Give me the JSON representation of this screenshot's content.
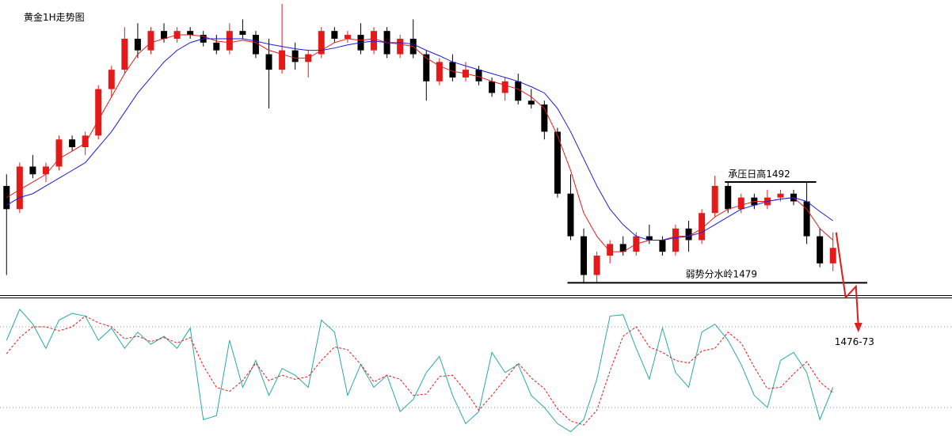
{
  "chart_data": [
    {
      "type": "candlestick",
      "title": "黄金1H走势图",
      "open": [
        1491.5,
        1488.5,
        1494,
        1493,
        1494,
        1497.5,
        1496.5,
        1498,
        1504,
        1506.5,
        1510.5,
        1509,
        1511.5,
        1510.5,
        1511.5,
        1511,
        1510,
        1509,
        1511.5,
        1511,
        1508.5,
        1506.5,
        1509,
        1507.5,
        1508.5,
        1511.5,
        1510.5,
        1511,
        1509,
        1511.5,
        1508.5,
        1510.5,
        1508.5,
        1505,
        1507.5,
        1505.5,
        1506.5,
        1505,
        1503.5,
        1505,
        1502.5,
        1502,
        1498.5,
        1490.5,
        1485,
        1480,
        1482.5,
        1484,
        1483,
        1485,
        1484.5,
        1483,
        1486,
        1484.5,
        1488,
        1491.5,
        1488.5,
        1490,
        1489,
        1490,
        1490.5,
        1489.5,
        1485,
        1481.5
      ],
      "high": [
        1493,
        1494.5,
        1495.5,
        1494.5,
        1498,
        1498,
        1498.5,
        1504.5,
        1507,
        1512,
        1512.5,
        1512,
        1512.5,
        1512,
        1512,
        1511.5,
        1511,
        1512.5,
        1513,
        1511.5,
        1510.5,
        1515,
        1510,
        1509,
        1512,
        1512,
        1511.5,
        1512.5,
        1512,
        1512,
        1511,
        1513,
        1509,
        1508,
        1508.5,
        1507.5,
        1507,
        1505.5,
        1505.5,
        1506,
        1504,
        1502.5,
        1499,
        1493,
        1486,
        1483,
        1484.5,
        1485,
        1485.5,
        1486.5,
        1485,
        1486.5,
        1487,
        1488.5,
        1492.8,
        1492,
        1490.5,
        1490.5,
        1491,
        1491,
        1491,
        1492,
        1486,
        1485.5
      ],
      "low": [
        1480,
        1488,
        1492.5,
        1492,
        1493.5,
        1496,
        1495.5,
        1497.5,
        1503,
        1506,
        1508,
        1508.5,
        1510,
        1510,
        1510.5,
        1509.5,
        1508.5,
        1508.5,
        1510.5,
        1508,
        1501.5,
        1506,
        1506.5,
        1505.5,
        1508,
        1510,
        1510,
        1508.5,
        1508.5,
        1508,
        1508,
        1508,
        1502.5,
        1504.5,
        1505,
        1505,
        1504.5,
        1503,
        1502.5,
        1502,
        1501.5,
        1497.5,
        1490,
        1484.5,
        1478.9,
        1479,
        1481.5,
        1482.5,
        1482.5,
        1484,
        1482.5,
        1482.5,
        1483,
        1484,
        1487.5,
        1488,
        1488,
        1488.5,
        1488.5,
        1489.5,
        1489,
        1484,
        1481,
        1480.5
      ],
      "close": [
        1488.5,
        1494,
        1493,
        1494,
        1497.5,
        1496.5,
        1498,
        1504,
        1506.5,
        1510.5,
        1509,
        1511.5,
        1510.5,
        1511.5,
        1511,
        1510,
        1509,
        1511.5,
        1511,
        1508.5,
        1506.5,
        1509,
        1507.5,
        1508.5,
        1511.5,
        1510.5,
        1511,
        1509,
        1511.5,
        1508.5,
        1510.5,
        1508.5,
        1505,
        1507.5,
        1505.5,
        1506.5,
        1505,
        1503.5,
        1505,
        1502.5,
        1502,
        1498.5,
        1490.5,
        1485,
        1480,
        1482.5,
        1484,
        1483,
        1485,
        1484.5,
        1483,
        1486,
        1484.5,
        1488,
        1491.5,
        1488.5,
        1490,
        1489,
        1490,
        1490.5,
        1489.5,
        1485,
        1481.5,
        1483.5
      ],
      "up_color": "#e41a1a",
      "down_color": "#000000",
      "ylim": [
        1477.5,
        1515.5
      ],
      "series": [
        {
          "color": "#e41a1a",
          "values": [
            1490,
            1491,
            1492,
            1493,
            1495,
            1496,
            1497,
            1500,
            1503,
            1506,
            1508.5,
            1510,
            1510.5,
            1511,
            1511,
            1510.8,
            1510.2,
            1510,
            1510.3,
            1510,
            1509,
            1508.5,
            1508,
            1508,
            1509,
            1510,
            1510.5,
            1510.3,
            1510.5,
            1510,
            1509.8,
            1509.5,
            1508,
            1507,
            1506.3,
            1506,
            1505.6,
            1505,
            1504.5,
            1504,
            1503,
            1501.5,
            1498,
            1493.5,
            1488,
            1485,
            1483,
            1483,
            1484,
            1484.5,
            1484.5,
            1485,
            1485,
            1486,
            1487.5,
            1488.5,
            1489,
            1489.5,
            1489.5,
            1489.8,
            1490,
            1488.5,
            1486,
            1484.5
          ]
        },
        {
          "color": "#1a1ae0",
          "values": [
            1489,
            1490,
            1490.5,
            1491.5,
            1492.5,
            1493.5,
            1494.5,
            1496.5,
            1498.5,
            1501,
            1503.5,
            1505.5,
            1507.5,
            1509,
            1510,
            1510.5,
            1510.5,
            1510.5,
            1510.5,
            1510.2,
            1509.8,
            1509.5,
            1509.2,
            1509,
            1509,
            1509.3,
            1509.7,
            1510,
            1510.2,
            1510,
            1510,
            1509.8,
            1509,
            1508.3,
            1507.5,
            1507,
            1506.5,
            1506,
            1505.5,
            1505,
            1504.3,
            1503.5,
            1501.5,
            1498.5,
            1495,
            1491.5,
            1488.5,
            1486.5,
            1485,
            1484.5,
            1484.5,
            1484.8,
            1485,
            1485.5,
            1486.5,
            1487.5,
            1488.5,
            1489,
            1489.5,
            1489.8,
            1490,
            1489.5,
            1488.2,
            1487
          ]
        }
      ],
      "annotations": [
        {
          "text": "承压日高1492",
          "value": 1492
        },
        {
          "text": "弱势分水岭1479",
          "value": 1479
        },
        {
          "text": "1476-73"
        }
      ]
    },
    {
      "type": "line",
      "ylim": [
        0,
        100
      ],
      "levels": [
        20,
        80
      ],
      "series": [
        {
          "color": "#2aa8a8",
          "values": [
            70,
            93,
            82,
            64,
            85,
            90,
            88,
            70,
            79,
            64,
            76,
            67,
            73,
            64,
            79,
            11,
            14,
            70,
            35,
            55,
            29,
            49,
            44,
            35,
            85,
            76,
            29,
            52,
            35,
            44,
            17,
            26,
            46,
            58,
            29,
            8,
            17,
            61,
            46,
            52,
            29,
            20,
            8,
            2,
            11,
            41,
            88,
            89,
            64,
            41,
            79,
            46,
            35,
            76,
            82,
            70,
            52,
            29,
            20,
            55,
            61,
            46,
            11,
            35
          ]
        },
        {
          "color": "#e41a1a",
          "dash": true,
          "values": [
            60,
            72,
            80,
            80,
            77,
            80,
            88,
            83,
            80,
            71,
            73,
            69,
            72,
            68,
            72,
            51,
            35,
            32,
            40,
            53,
            40,
            44,
            41,
            43,
            55,
            65,
            63,
            52,
            39,
            44,
            41,
            29,
            30,
            43,
            44,
            32,
            18,
            29,
            41,
            53,
            42,
            34,
            19,
            10,
            7,
            18,
            47,
            73,
            80,
            65,
            61,
            55,
            53,
            62,
            64,
            76,
            68,
            50,
            34,
            35,
            45,
            54,
            39,
            31
          ]
        }
      ]
    }
  ]
}
